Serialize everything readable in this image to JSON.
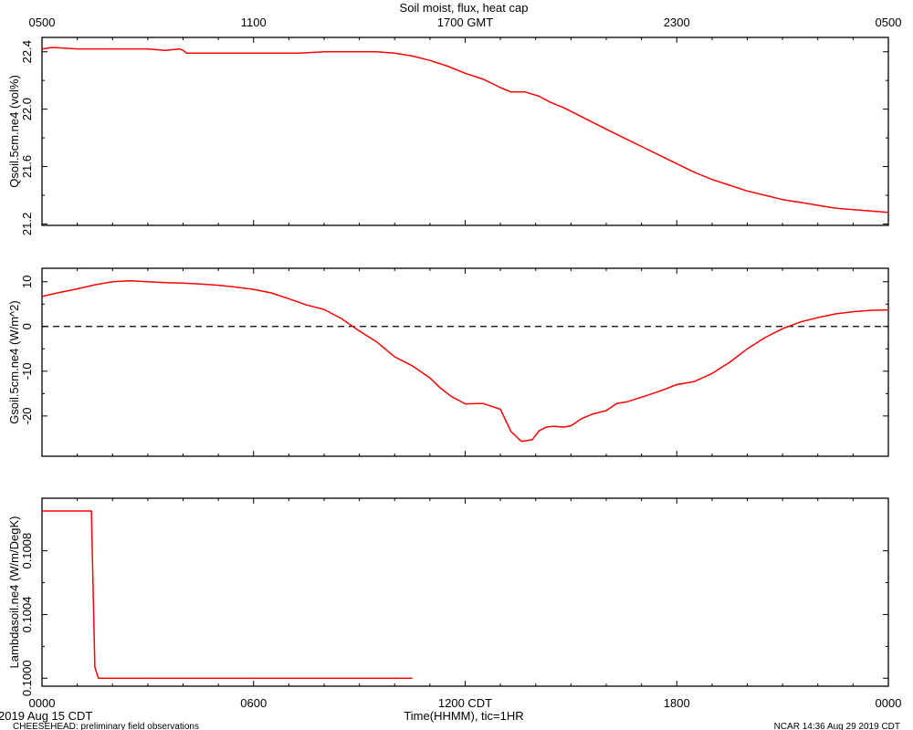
{
  "page": {
    "title": "Soil moist, flux, heat cap",
    "top_axis_ticks": [
      "0500",
      "1100",
      "1700 GMT",
      "2300",
      "0500"
    ],
    "bottom_axis_ticks": [
      "0000",
      "0600",
      "1200 CDT",
      "1800",
      "0000"
    ],
    "xlabel": "Time(HHMM), tic=1HR",
    "date_label": "2019 Aug 15 CDT",
    "footer_left": "CHEESEHEAD: preliminary field observations",
    "footer_right": "NCAR 14:36 Aug 29 2019 CDT"
  },
  "colors": {
    "series": "#ff0000",
    "axis": "#000000"
  },
  "chart_data": [
    {
      "type": "line",
      "ylabel": "Qsoil.5cm.ne4 (vol%)",
      "ylim": [
        21.19,
        22.5
      ],
      "yticks": [
        21.2,
        21.6,
        22.0,
        22.4
      ],
      "ytick_labels": [
        "21.2",
        "21.6",
        "22.0",
        "22.4"
      ],
      "xlim_hours": [
        0,
        24
      ],
      "series": [
        {
          "x": [
            0,
            0.3,
            1,
            2,
            3,
            3.5,
            3.9,
            4.0,
            4.1,
            5,
            6,
            7,
            7.3,
            8,
            8.5,
            9,
            9.5,
            10,
            10.5,
            11,
            11.5,
            12,
            12.5,
            13,
            13.3,
            13.7,
            14.1,
            14.4,
            14.8,
            15.2,
            15.6,
            16,
            16.5,
            17,
            17.5,
            18,
            18.5,
            19,
            19.5,
            20,
            20.5,
            21,
            21.5,
            22,
            22.5,
            23,
            23.5,
            24
          ],
          "y": [
            22.42,
            22.43,
            22.42,
            22.42,
            22.42,
            22.41,
            22.42,
            22.41,
            22.39,
            22.39,
            22.39,
            22.39,
            22.39,
            22.4,
            22.4,
            22.4,
            22.4,
            22.39,
            22.37,
            22.34,
            22.3,
            22.25,
            22.21,
            22.15,
            22.12,
            22.12,
            22.09,
            22.05,
            22.01,
            21.96,
            21.91,
            21.86,
            21.8,
            21.74,
            21.68,
            21.62,
            21.56,
            21.51,
            21.47,
            21.43,
            21.4,
            21.37,
            21.35,
            21.33,
            21.31,
            21.3,
            21.29,
            21.28
          ]
        }
      ]
    },
    {
      "type": "line",
      "ylabel": "Gsoil.5cm.ne4 (W/m^2)",
      "ylim": [
        -29.0,
        13.0
      ],
      "yticks": [
        -20,
        -10,
        0,
        10
      ],
      "ytick_labels": [
        "-20",
        "-10",
        "0",
        "10"
      ],
      "reference_line": {
        "y": 0,
        "style": "dashed"
      },
      "xlim_hours": [
        0,
        24
      ],
      "series": [
        {
          "x": [
            0,
            0.5,
            1,
            1.5,
            2,
            2.5,
            3,
            3.5,
            4,
            4.5,
            5,
            5.5,
            6,
            6.5,
            7,
            7.5,
            8,
            8.5,
            9,
            9.5,
            10,
            10.5,
            11,
            11.3,
            11.6,
            12,
            12.5,
            13,
            13.3,
            13.6,
            13.9,
            14.1,
            14.3,
            14.5,
            14.8,
            15,
            15.3,
            15.6,
            16,
            16.3,
            16.6,
            17,
            17.5,
            18,
            18.5,
            19,
            19.5,
            20,
            20.5,
            21,
            21.5,
            22,
            22.5,
            23,
            23.5,
            24
          ],
          "y": [
            6.7,
            7.6,
            8.4,
            9.3,
            10.0,
            10.2,
            10.0,
            9.8,
            9.7,
            9.5,
            9.2,
            8.8,
            8.3,
            7.5,
            6.2,
            4.8,
            3.8,
            1.7,
            -1.0,
            -3.5,
            -6.8,
            -8.8,
            -11.5,
            -13.8,
            -15.6,
            -17.3,
            -17.2,
            -18.5,
            -23.5,
            -25.7,
            -25.3,
            -23.3,
            -22.5,
            -22.3,
            -22.5,
            -22.2,
            -20.6,
            -19.6,
            -18.8,
            -17.2,
            -16.8,
            -15.8,
            -14.5,
            -13.0,
            -12.3,
            -10.5,
            -8.0,
            -5.0,
            -2.5,
            -0.5,
            1.0,
            2.0,
            2.8,
            3.3,
            3.6,
            3.7
          ]
        }
      ]
    },
    {
      "type": "line",
      "ylabel": "Lambdasoil.ne4 (W/m/DegK)",
      "ylim": [
        0.09995,
        0.10113
      ],
      "yticks": [
        0.1,
        0.1004,
        0.1008
      ],
      "ytick_labels": [
        "0.1000",
        "0.1004",
        "0.1008"
      ],
      "xlim_hours": [
        0,
        24
      ],
      "series": [
        {
          "x": [
            0,
            1.4,
            1.5,
            1.6,
            10.5
          ],
          "y": [
            0.10105,
            0.10105,
            0.10007,
            0.1,
            0.1
          ]
        }
      ]
    }
  ]
}
